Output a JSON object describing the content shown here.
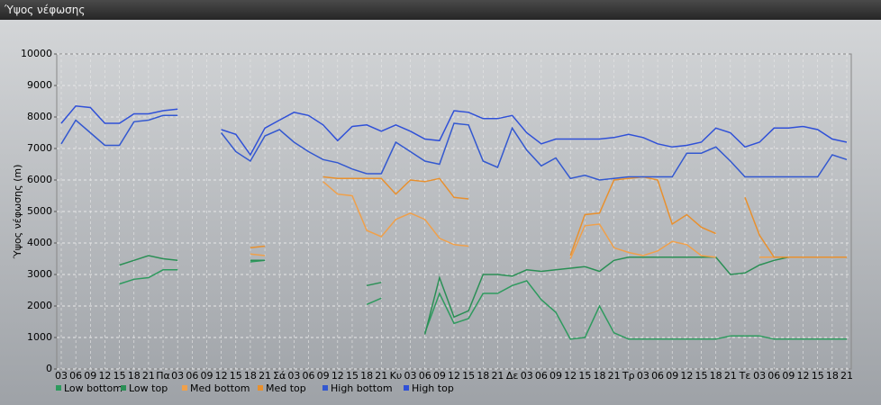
{
  "window_title": "Ύψος νέφωσης",
  "chart_data": {
    "type": "line",
    "y_label": "Ύψος νέφωσης (m)",
    "categories": [
      "03",
      "06",
      "09",
      "12",
      "15",
      "18",
      "21",
      "Πα",
      "03",
      "06",
      "09",
      "12",
      "15",
      "18",
      "21",
      "Σά",
      "03",
      "06",
      "09",
      "12",
      "15",
      "18",
      "21",
      "Κυ",
      "03",
      "06",
      "09",
      "12",
      "15",
      "18",
      "21",
      "Δε",
      "03",
      "06",
      "09",
      "12",
      "15",
      "18",
      "21",
      "Τρ",
      "03",
      "06",
      "09",
      "12",
      "15",
      "18",
      "21",
      "Τε",
      "03",
      "06",
      "09",
      "12",
      "15",
      "18",
      "21"
    ],
    "ylim": [
      0,
      10000
    ],
    "yticks": [
      0,
      1000,
      2000,
      3000,
      4000,
      5000,
      6000,
      7000,
      8000,
      9000,
      10000
    ],
    "grid": true,
    "series": [
      {
        "name": "Low bottom",
        "color": "#2e9a5e",
        "values": [
          null,
          null,
          null,
          null,
          2700,
          2850,
          2900,
          3150,
          3150,
          null,
          null,
          null,
          null,
          3400,
          3450,
          null,
          null,
          null,
          null,
          null,
          null,
          2050,
          2250,
          null,
          null,
          1150,
          2400,
          1450,
          1600,
          2400,
          2400,
          2650,
          2800,
          2200,
          1800,
          950,
          1000,
          2000,
          1150,
          950,
          950,
          950,
          950,
          950,
          950,
          950,
          1050,
          1050,
          1050,
          950,
          950,
          950,
          950,
          950,
          950
        ]
      },
      {
        "name": "Low top",
        "color": "#2a8f55",
        "values": [
          null,
          null,
          null,
          null,
          3300,
          3450,
          3600,
          3500,
          3450,
          null,
          null,
          null,
          null,
          3450,
          3450,
          null,
          null,
          null,
          null,
          null,
          null,
          2650,
          2750,
          null,
          null,
          1100,
          2900,
          1650,
          1850,
          3000,
          3000,
          2950,
          3150,
          3100,
          3150,
          3200,
          3250,
          3100,
          3450,
          3550,
          3550,
          3550,
          3550,
          3550,
          3550,
          3550,
          3000,
          3050,
          3300,
          3450,
          3550,
          3550,
          3550,
          3550,
          3550
        ]
      },
      {
        "name": "Med bottom",
        "color": "#f0a04a",
        "values": [
          null,
          null,
          null,
          null,
          null,
          null,
          null,
          null,
          null,
          null,
          null,
          null,
          null,
          3650,
          3600,
          null,
          null,
          null,
          5950,
          5550,
          5500,
          4400,
          4200,
          4750,
          4950,
          4750,
          4150,
          3950,
          3900,
          null,
          null,
          null,
          null,
          null,
          null,
          3500,
          4550,
          4600,
          3850,
          3700,
          3600,
          3750,
          4050,
          3950,
          3600,
          3550,
          null,
          null,
          3550,
          3550,
          3550,
          3550,
          3550,
          3550,
          3550
        ]
      },
      {
        "name": "Med top",
        "color": "#e8902e",
        "values": [
          null,
          null,
          null,
          null,
          null,
          null,
          null,
          null,
          null,
          null,
          null,
          null,
          null,
          3850,
          3900,
          null,
          null,
          null,
          6100,
          6050,
          6050,
          6050,
          6050,
          5550,
          6000,
          5950,
          6050,
          5450,
          5400,
          null,
          null,
          null,
          null,
          null,
          null,
          3600,
          4900,
          4950,
          6000,
          6050,
          6100,
          6000,
          4600,
          4900,
          4500,
          4300,
          null,
          5450,
          4250,
          3550,
          3550,
          3550,
          3550,
          3550,
          3550
        ]
      },
      {
        "name": "High bottom",
        "color": "#3358d0",
        "values": [
          7150,
          7900,
          7500,
          7100,
          7100,
          7850,
          7900,
          8050,
          8050,
          null,
          null,
          7500,
          6900,
          6600,
          7400,
          7600,
          7200,
          6900,
          6650,
          6550,
          6350,
          6200,
          6200,
          7200,
          6900,
          6600,
          6500,
          7800,
          7750,
          6600,
          6400,
          7650,
          6950,
          6450,
          6700,
          6050,
          6150,
          6000,
          6050,
          6100,
          6100,
          6100,
          6100,
          6850,
          6850,
          7050,
          6600,
          6100,
          6100,
          6100,
          6100,
          6100,
          6100,
          6800,
          6650
        ]
      },
      {
        "name": "High top",
        "color": "#2f50d8",
        "values": [
          7800,
          8350,
          8300,
          7800,
          7800,
          8100,
          8100,
          8200,
          8250,
          null,
          null,
          7600,
          7450,
          6800,
          7650,
          7900,
          8150,
          8050,
          7750,
          7250,
          7700,
          7750,
          7550,
          7750,
          7550,
          7300,
          7250,
          8200,
          8150,
          7950,
          7950,
          8050,
          7500,
          7150,
          7300,
          7300,
          7300,
          7300,
          7350,
          7450,
          7350,
          7150,
          7050,
          7100,
          7200,
          7650,
          7500,
          7050,
          7200,
          7650,
          7650,
          7700,
          7600,
          7300,
          7200
        ]
      }
    ]
  }
}
